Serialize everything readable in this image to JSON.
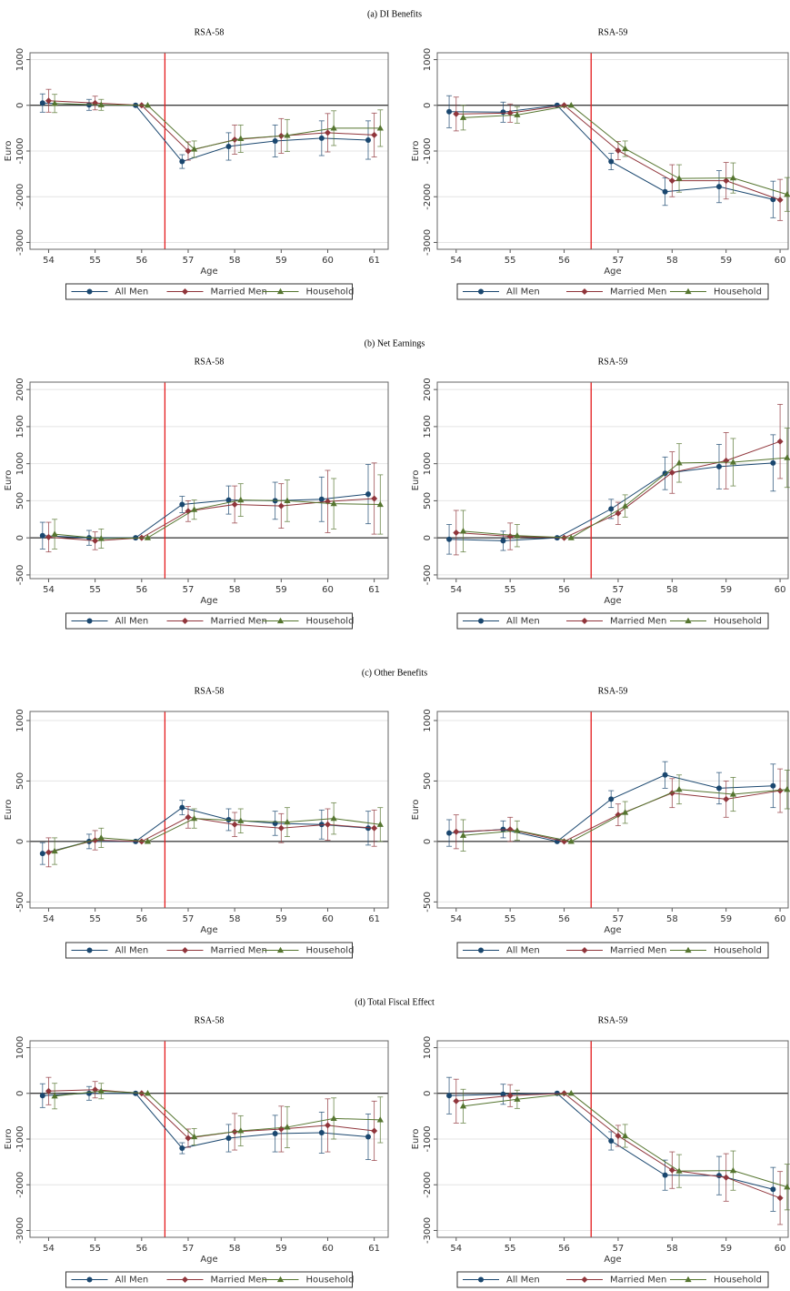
{
  "sections": [
    "(a) DI Benefits",
    "(b) Net Earnings",
    "(c) Other Benefits",
    "(d) Total Fiscal Effect"
  ],
  "chart_data": [
    {
      "type": "line",
      "title": "RSA-58",
      "x_label": "Age",
      "y_label": "Euro",
      "x": [
        54,
        55,
        56,
        57,
        58,
        59,
        60,
        61
      ],
      "xlim": [
        53.6,
        61.3
      ],
      "xticks": [
        54,
        55,
        56,
        57,
        58,
        59,
        60,
        61
      ],
      "ylim": [
        -3150,
        1150
      ],
      "yticks": [
        -3000,
        -2000,
        -1000,
        0,
        1000
      ],
      "grid": true,
      "vline": 56.5,
      "vline_color": "#e41a1c",
      "hline": 0,
      "legend": "bottom",
      "series": [
        {
          "name": "All Men",
          "color": "#1a476f",
          "marker": "circle",
          "values": [
            50,
            10,
            0,
            -1230,
            -900,
            -780,
            -720,
            -760
          ],
          "errors": [
            200,
            120,
            0,
            150,
            300,
            350,
            380,
            420
          ]
        },
        {
          "name": "Married Men",
          "color": "#90353b",
          "marker": "diamond",
          "values": [
            100,
            50,
            0,
            -1000,
            -750,
            -670,
            -600,
            -650
          ],
          "errors": [
            250,
            150,
            0,
            200,
            320,
            380,
            420,
            480
          ]
        },
        {
          "name": "Household",
          "color": "#55752f",
          "marker": "triangle",
          "values": [
            40,
            10,
            0,
            -960,
            -730,
            -660,
            -500,
            -500
          ],
          "errors": [
            200,
            120,
            0,
            180,
            300,
            350,
            380,
            400
          ]
        }
      ]
    },
    {
      "type": "line",
      "title": "RSA-59",
      "x_label": "Age",
      "y_label": "Euro",
      "x": [
        54,
        55,
        56,
        57,
        58,
        59,
        60
      ],
      "xlim": [
        53.65,
        60.15
      ],
      "xticks": [
        54,
        55,
        56,
        57,
        58,
        59,
        60
      ],
      "ylim": [
        -3150,
        1150
      ],
      "yticks": [
        -3000,
        -2000,
        -1000,
        0,
        1000
      ],
      "grid": true,
      "vline": 56.5,
      "vline_color": "#e41a1c",
      "hline": 0,
      "legend": "bottom",
      "series": [
        {
          "name": "All Men",
          "color": "#1a476f",
          "marker": "circle",
          "values": [
            -140,
            -150,
            0,
            -1230,
            -1890,
            -1780,
            -2060
          ],
          "errors": [
            350,
            220,
            0,
            180,
            300,
            350,
            400
          ]
        },
        {
          "name": "Married Men",
          "color": "#90353b",
          "marker": "diamond",
          "values": [
            -190,
            -170,
            0,
            -990,
            -1650,
            -1650,
            -2070
          ],
          "errors": [
            370,
            200,
            0,
            200,
            350,
            400,
            450
          ]
        },
        {
          "name": "Household",
          "color": "#55752f",
          "marker": "triangle",
          "values": [
            -270,
            -210,
            0,
            -950,
            -1600,
            -1590,
            -1950
          ],
          "errors": [
            270,
            180,
            0,
            170,
            300,
            330,
            370
          ]
        }
      ]
    },
    {
      "type": "line",
      "title": "RSA-58",
      "x_label": "Age",
      "y_label": "Euro",
      "x": [
        54,
        55,
        56,
        57,
        58,
        59,
        60,
        61
      ],
      "xlim": [
        53.6,
        61.3
      ],
      "xticks": [
        54,
        55,
        56,
        57,
        58,
        59,
        60,
        61
      ],
      "ylim": [
        -550,
        2100
      ],
      "yticks": [
        -500,
        0,
        500,
        1000,
        1500,
        2000
      ],
      "grid": true,
      "vline": 56.5,
      "vline_color": "#e41a1c",
      "hline": 0,
      "legend": "bottom",
      "series": [
        {
          "name": "All Men",
          "color": "#1a476f",
          "marker": "circle",
          "values": [
            30,
            0,
            0,
            450,
            510,
            500,
            520,
            590
          ],
          "errors": [
            180,
            100,
            0,
            110,
            190,
            250,
            300,
            400
          ]
        },
        {
          "name": "Married Men",
          "color": "#90353b",
          "marker": "diamond",
          "values": [
            10,
            -40,
            0,
            360,
            450,
            430,
            490,
            530
          ],
          "errors": [
            200,
            120,
            0,
            140,
            250,
            300,
            420,
            480
          ]
        },
        {
          "name": "Household",
          "color": "#55752f",
          "marker": "triangle",
          "values": [
            50,
            -10,
            0,
            380,
            510,
            500,
            460,
            450
          ],
          "errors": [
            200,
            130,
            0,
            130,
            220,
            280,
            340,
            400
          ]
        }
      ]
    },
    {
      "type": "line",
      "title": "RSA-59",
      "x_label": "Age",
      "y_label": "Euro",
      "x": [
        54,
        55,
        56,
        57,
        58,
        59,
        60
      ],
      "xlim": [
        53.65,
        60.15
      ],
      "xticks": [
        54,
        55,
        56,
        57,
        58,
        59,
        60
      ],
      "ylim": [
        -550,
        2100
      ],
      "yticks": [
        -500,
        0,
        500,
        1000,
        1500,
        2000
      ],
      "grid": true,
      "vline": 56.5,
      "vline_color": "#e41a1c",
      "hline": 0,
      "legend": "bottom",
      "series": [
        {
          "name": "All Men",
          "color": "#1a476f",
          "marker": "circle",
          "values": [
            -20,
            -40,
            0,
            390,
            870,
            960,
            1010
          ],
          "errors": [
            200,
            130,
            0,
            130,
            220,
            300,
            380
          ]
        },
        {
          "name": "Married Men",
          "color": "#90353b",
          "marker": "diamond",
          "values": [
            70,
            20,
            0,
            330,
            880,
            1040,
            1300
          ],
          "errors": [
            300,
            180,
            0,
            150,
            280,
            380,
            500
          ]
        },
        {
          "name": "Household",
          "color": "#55752f",
          "marker": "triangle",
          "values": [
            90,
            30,
            0,
            430,
            1010,
            1020,
            1080
          ],
          "errors": [
            280,
            150,
            0,
            150,
            260,
            320,
            400
          ]
        }
      ]
    },
    {
      "type": "line",
      "title": "RSA-58",
      "x_label": "Age",
      "y_label": "Euro",
      "x": [
        54,
        55,
        56,
        57,
        58,
        59,
        60,
        61
      ],
      "xlim": [
        53.6,
        61.3
      ],
      "xticks": [
        54,
        55,
        56,
        57,
        58,
        59,
        60,
        61
      ],
      "ylim": [
        -550,
        1075
      ],
      "yticks": [
        -500,
        0,
        500,
        1000
      ],
      "grid": true,
      "vline": 56.5,
      "vline_color": "#e41a1c",
      "hline": 0,
      "legend": "bottom",
      "series": [
        {
          "name": "All Men",
          "color": "#1a476f",
          "marker": "circle",
          "values": [
            -100,
            0,
            0,
            280,
            180,
            150,
            140,
            110
          ],
          "errors": [
            90,
            60,
            0,
            60,
            90,
            100,
            120,
            140
          ]
        },
        {
          "name": "Married Men",
          "color": "#90353b",
          "marker": "diamond",
          "values": [
            -90,
            10,
            0,
            200,
            140,
            110,
            140,
            110
          ],
          "errors": [
            120,
            80,
            0,
            90,
            100,
            120,
            130,
            150
          ]
        },
        {
          "name": "Household",
          "color": "#55752f",
          "marker": "triangle",
          "values": [
            -80,
            30,
            0,
            190,
            170,
            160,
            190,
            140
          ],
          "errors": [
            110,
            80,
            0,
            80,
            100,
            120,
            130,
            140
          ]
        }
      ]
    },
    {
      "type": "line",
      "title": "RSA-59",
      "x_label": "Age",
      "y_label": "Euro",
      "x": [
        54,
        55,
        56,
        57,
        58,
        59,
        60
      ],
      "xlim": [
        53.65,
        60.15
      ],
      "xticks": [
        54,
        55,
        56,
        57,
        58,
        59,
        60
      ],
      "ylim": [
        -550,
        1075
      ],
      "yticks": [
        -500,
        0,
        500,
        1000
      ],
      "grid": true,
      "vline": 56.5,
      "vline_color": "#e41a1c",
      "hline": 0,
      "legend": "bottom",
      "series": [
        {
          "name": "All Men",
          "color": "#1a476f",
          "marker": "circle",
          "values": [
            70,
            100,
            0,
            350,
            550,
            440,
            460
          ],
          "errors": [
            110,
            70,
            0,
            70,
            110,
            130,
            180
          ]
        },
        {
          "name": "Married Men",
          "color": "#90353b",
          "marker": "diamond",
          "values": [
            80,
            100,
            0,
            220,
            400,
            350,
            420
          ],
          "errors": [
            140,
            100,
            0,
            90,
            120,
            150,
            180
          ]
        },
        {
          "name": "Household",
          "color": "#55752f",
          "marker": "triangle",
          "values": [
            50,
            90,
            0,
            240,
            430,
            390,
            430
          ],
          "errors": [
            130,
            80,
            0,
            90,
            120,
            140,
            160
          ]
        }
      ]
    },
    {
      "type": "line",
      "title": "RSA-58",
      "x_label": "Age",
      "y_label": "Euro",
      "x": [
        54,
        55,
        56,
        57,
        58,
        59,
        60,
        61
      ],
      "xlim": [
        53.6,
        61.3
      ],
      "xticks": [
        54,
        55,
        56,
        57,
        58,
        59,
        60,
        61
      ],
      "ylim": [
        -3150,
        1150
      ],
      "yticks": [
        -3000,
        -2000,
        -1000,
        0,
        1000
      ],
      "grid": true,
      "vline": 56.5,
      "vline_color": "#e41a1c",
      "hline": 0,
      "legend": "bottom",
      "series": [
        {
          "name": "All Men",
          "color": "#1a476f",
          "marker": "circle",
          "values": [
            -50,
            0,
            0,
            -1200,
            -980,
            -880,
            -860,
            -950
          ],
          "errors": [
            260,
            150,
            0,
            120,
            300,
            400,
            450,
            500
          ]
        },
        {
          "name": "Married Men",
          "color": "#90353b",
          "marker": "diamond",
          "values": [
            50,
            80,
            0,
            -980,
            -840,
            -780,
            -700,
            -820
          ],
          "errors": [
            300,
            180,
            0,
            200,
            400,
            500,
            580,
            650
          ]
        },
        {
          "name": "Household",
          "color": "#55752f",
          "marker": "triangle",
          "values": [
            -60,
            50,
            0,
            -950,
            -820,
            -740,
            -550,
            -580
          ],
          "errors": [
            280,
            170,
            0,
            180,
            330,
            450,
            450,
            500
          ]
        }
      ]
    },
    {
      "type": "line",
      "title": "RSA-59",
      "x_label": "Age",
      "y_label": "Euro",
      "x": [
        54,
        55,
        56,
        57,
        58,
        59,
        60
      ],
      "xlim": [
        53.65,
        60.15
      ],
      "xticks": [
        54,
        55,
        56,
        57,
        58,
        59,
        60
      ],
      "ylim": [
        -3150,
        1150
      ],
      "yticks": [
        -3000,
        -2000,
        -1000,
        0,
        1000
      ],
      "grid": true,
      "vline": 56.5,
      "vline_color": "#e41a1c",
      "hline": 0,
      "legend": "bottom",
      "series": [
        {
          "name": "All Men",
          "color": "#1a476f",
          "marker": "circle",
          "values": [
            -50,
            -20,
            0,
            -1040,
            -1790,
            -1800,
            -2100
          ],
          "errors": [
            400,
            220,
            0,
            200,
            330,
            420,
            480
          ]
        },
        {
          "name": "Married Men",
          "color": "#90353b",
          "marker": "diamond",
          "values": [
            -170,
            -50,
            0,
            -930,
            -1680,
            -1840,
            -2290
          ],
          "errors": [
            480,
            240,
            0,
            230,
            400,
            520,
            580
          ]
        },
        {
          "name": "Household",
          "color": "#55752f",
          "marker": "triangle",
          "values": [
            -280,
            -130,
            0,
            -930,
            -1700,
            -1690,
            -2050
          ],
          "errors": [
            370,
            200,
            0,
            250,
            360,
            430,
            500
          ]
        }
      ]
    }
  ]
}
